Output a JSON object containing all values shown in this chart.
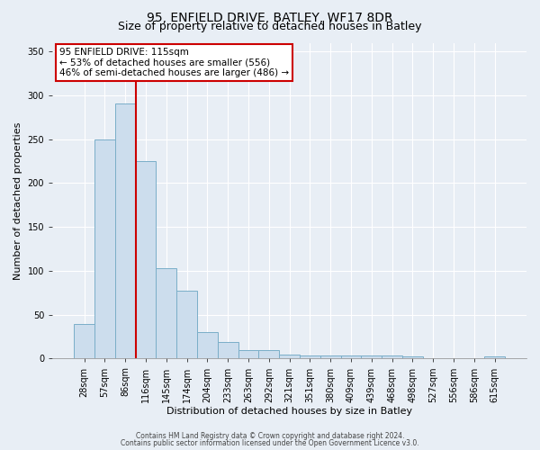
{
  "title": "95, ENFIELD DRIVE, BATLEY, WF17 8DR",
  "subtitle": "Size of property relative to detached houses in Batley",
  "xlabel": "Distribution of detached houses by size in Batley",
  "ylabel": "Number of detached properties",
  "bar_labels": [
    "28sqm",
    "57sqm",
    "86sqm",
    "116sqm",
    "145sqm",
    "174sqm",
    "204sqm",
    "233sqm",
    "263sqm",
    "292sqm",
    "321sqm",
    "351sqm",
    "380sqm",
    "409sqm",
    "439sqm",
    "468sqm",
    "498sqm",
    "527sqm",
    "556sqm",
    "586sqm",
    "615sqm"
  ],
  "bar_heights": [
    39,
    250,
    291,
    225,
    103,
    77,
    30,
    19,
    10,
    10,
    5,
    4,
    4,
    3,
    3,
    3,
    2,
    0,
    0,
    0,
    2
  ],
  "bar_color": "#ccdded",
  "bar_edge_color": "#7aaec8",
  "vline_color": "#cc0000",
  "vline_x": 2.5,
  "annotation_text_line1": "95 ENFIELD DRIVE: 115sqm",
  "annotation_text_line2": "← 53% of detached houses are smaller (556)",
  "annotation_text_line3": "46% of semi-detached houses are larger (486) →",
  "annotation_box_color": "#cc0000",
  "ylim": [
    0,
    360
  ],
  "yticks": [
    0,
    50,
    100,
    150,
    200,
    250,
    300,
    350
  ],
  "footer1": "Contains HM Land Registry data © Crown copyright and database right 2024.",
  "footer2": "Contains public sector information licensed under the Open Government Licence v3.0.",
  "bg_color": "#e8eef5",
  "plot_bg_color": "#e8eef5",
  "grid_color": "#ffffff",
  "title_fontsize": 10,
  "subtitle_fontsize": 9,
  "xlabel_fontsize": 8,
  "ylabel_fontsize": 8,
  "tick_fontsize": 7,
  "ann_fontsize": 7.5,
  "footer_fontsize": 5.5
}
